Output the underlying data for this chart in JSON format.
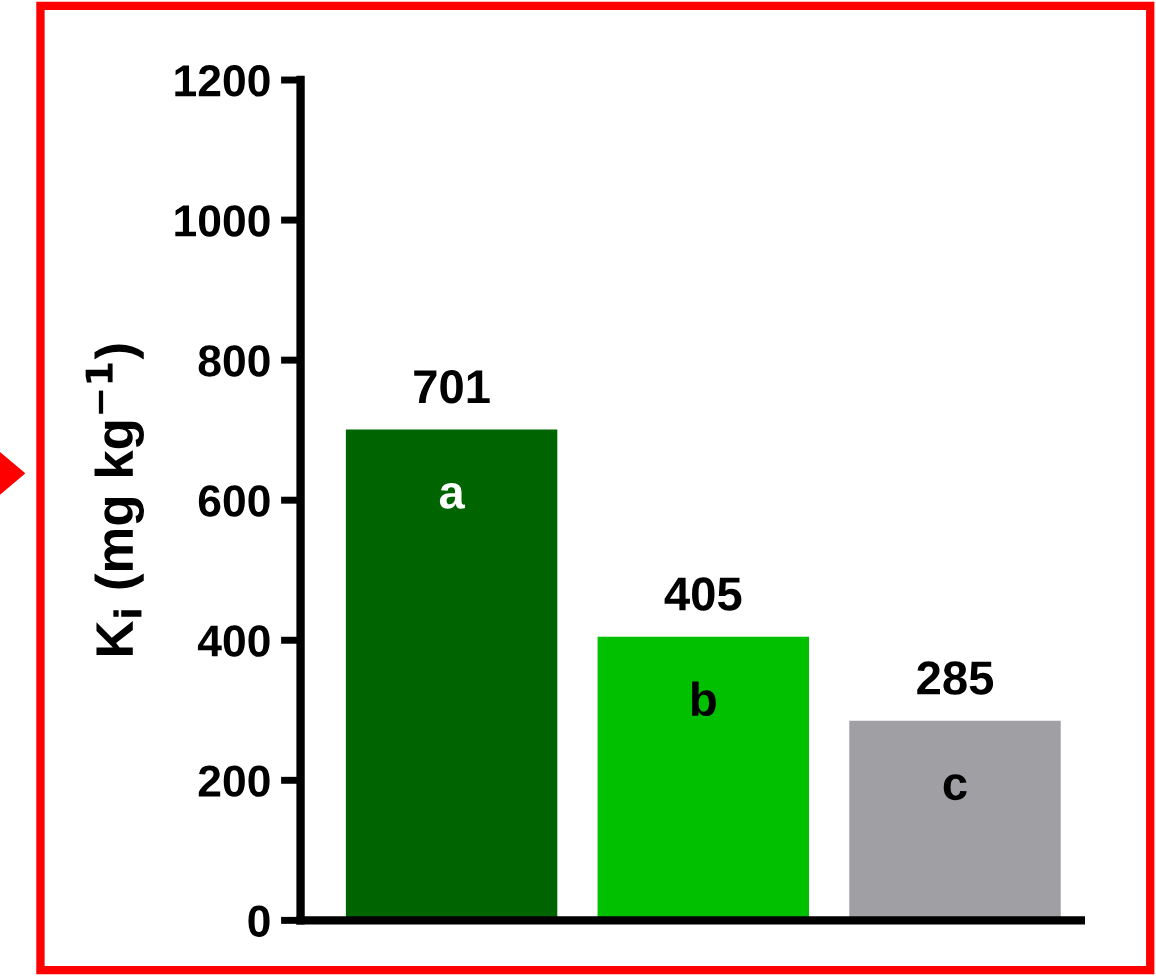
{
  "chart_data": {
    "type": "bar",
    "ylabel": "K$_{i}$ (mg kg$^{−1}$)",
    "categories": [
      null,
      null,
      null
    ],
    "values": [
      701,
      405,
      285
    ],
    "colors": [
      "#006400",
      "#00c000",
      "#a0a0a4"
    ],
    "ylim": [
      0,
      1200
    ],
    "yticks": [
      0,
      200,
      400,
      600,
      800,
      1000,
      1200
    ],
    "data_labels": true,
    "grid": false,
    "legend": false,
    "annotations": [
      "a",
      "b",
      "c"
    ]
  }
}
